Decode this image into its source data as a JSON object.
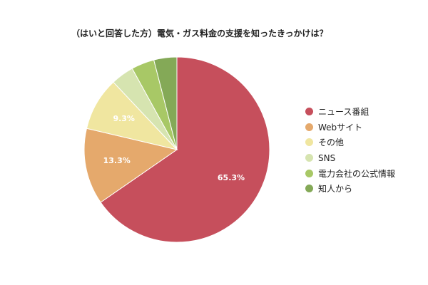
{
  "chart_data": {
    "type": "pie",
    "title": "（はいと回答した方）電気・ガス料金の支援を知ったきっかけは？",
    "legend_position": "right",
    "slices": [
      {
        "label": "ニュース番組",
        "value": 65.3,
        "data_label": "65.3%",
        "color": "#c64f5c"
      },
      {
        "label": "Webサイト",
        "value": 13.3,
        "data_label": "13.3%",
        "color": "#e5a96c"
      },
      {
        "label": "その他",
        "value": 9.3,
        "data_label": "9.3%",
        "color": "#f0e6a0"
      },
      {
        "label": "SNS",
        "value": 4.0,
        "data_label": "",
        "color": "#d6e4b0"
      },
      {
        "label": "電力会社の公式情報",
        "value": 4.0,
        "data_label": "",
        "color": "#a8c866"
      },
      {
        "label": "知人から",
        "value": 4.0,
        "data_label": "",
        "color": "#84a957"
      }
    ]
  }
}
